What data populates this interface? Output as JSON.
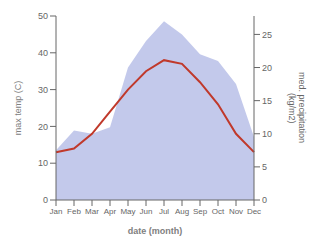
{
  "chart_data": {
    "type": "line",
    "categories": [
      "Jan",
      "Feb",
      "Mar",
      "Apr",
      "May",
      "Jun",
      "Jul",
      "Aug",
      "Sep",
      "Oct",
      "Nov",
      "Dec"
    ],
    "series": [
      {
        "type": "area",
        "axis": "y2",
        "color": "#b8c0e8",
        "values": [
          7.5,
          10.5,
          10,
          11,
          20,
          24,
          27,
          25,
          22,
          21,
          17.5,
          9.5
        ]
      },
      {
        "type": "line",
        "color": "#c0392b",
        "values": [
          13,
          14,
          18,
          24,
          30,
          35,
          38,
          37,
          32,
          26,
          18,
          13
        ]
      }
    ],
    "xlabel": "date (month)",
    "ylabel": "max temp (C)",
    "y2label": "med. precipitation\n(kg/m2)",
    "ylim": [
      0,
      50
    ],
    "yticks": [
      0,
      10,
      20,
      30,
      40,
      50
    ],
    "y2lim": [
      0,
      27.78
    ],
    "y2ticks": [
      0,
      5,
      10,
      15,
      20,
      25
    ],
    "grid": false
  }
}
